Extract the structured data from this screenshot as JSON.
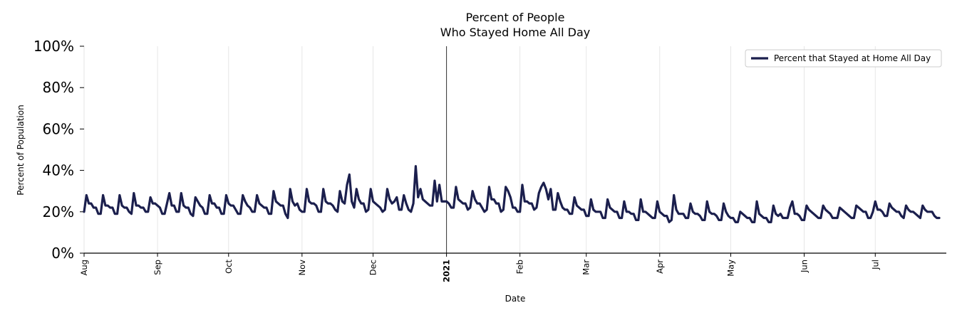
{
  "chart_data": {
    "type": "line",
    "title_lines": [
      "Percent of People",
      "Who Stayed Home All Day"
    ],
    "xlabel": "Date",
    "ylabel": "Percent of Population",
    "ylim": [
      0,
      100
    ],
    "yticks": [
      0,
      20,
      40,
      60,
      80,
      100
    ],
    "ytick_labels": [
      "0%",
      "20%",
      "40%",
      "60%",
      "80%",
      "100%"
    ],
    "x_start": "2020-08-01",
    "x_end": "2021-07-31",
    "xticks": [
      {
        "label": "Aug",
        "day": 0
      },
      {
        "label": "Sep",
        "day": 31
      },
      {
        "label": "Oct",
        "day": 61
      },
      {
        "label": "Nov",
        "day": 92
      },
      {
        "label": "Dec",
        "day": 122
      },
      {
        "label": "2021",
        "day": 153,
        "bold": true
      },
      {
        "label": "Feb",
        "day": 184
      },
      {
        "label": "Mar",
        "day": 212
      },
      {
        "label": "Apr",
        "day": 243
      },
      {
        "label": "May",
        "day": 273
      },
      {
        "label": "Jun",
        "day": 304
      },
      {
        "label": "Jul",
        "day": 334
      }
    ],
    "vline_day": 153,
    "legend": {
      "label": "Percent that Stayed at Home All Day",
      "placement": "top-right"
    },
    "series": [
      {
        "name": "Percent that Stayed at Home All Day",
        "color": "#1b1f4d",
        "start_day": 0,
        "values": [
          20,
          28,
          24,
          24,
          22,
          22,
          19,
          19,
          28,
          23,
          23,
          22,
          22,
          19,
          19,
          28,
          23,
          22,
          22,
          20,
          19,
          29,
          23,
          23,
          22,
          22,
          20,
          20,
          27,
          24,
          24,
          23,
          22,
          19,
          19,
          24,
          29,
          23,
          23,
          20,
          20,
          29,
          23,
          22,
          22,
          19,
          18,
          27,
          25,
          23,
          22,
          19,
          19,
          28,
          24,
          24,
          22,
          22,
          19,
          19,
          28,
          24,
          23,
          23,
          21,
          19,
          19,
          28,
          25,
          23,
          22,
          20,
          20,
          28,
          24,
          23,
          22,
          22,
          19,
          19,
          30,
          25,
          24,
          23,
          23,
          19,
          17,
          31,
          25,
          23,
          24,
          21,
          20,
          20,
          31,
          25,
          24,
          24,
          23,
          20,
          20,
          31,
          25,
          24,
          24,
          23,
          21,
          20,
          30,
          25,
          24,
          33,
          38,
          25,
          22,
          31,
          26,
          24,
          24,
          20,
          21,
          31,
          25,
          24,
          23,
          22,
          20,
          21,
          31,
          26,
          24,
          25,
          27,
          21,
          21,
          28,
          24,
          21,
          20,
          24,
          42,
          27,
          31,
          26,
          25,
          24,
          23,
          23,
          35,
          25,
          33,
          25,
          25,
          25,
          24,
          22,
          22,
          32,
          26,
          25,
          24,
          24,
          21,
          22,
          30,
          26,
          24,
          24,
          22,
          20,
          21,
          32,
          26,
          26,
          24,
          24,
          20,
          21,
          32,
          30,
          27,
          22,
          22,
          20,
          20,
          33,
          25,
          25,
          24,
          24,
          21,
          22,
          29,
          32,
          34,
          31,
          26,
          31,
          21,
          21,
          29,
          25,
          22,
          21,
          21,
          19,
          19,
          27,
          23,
          22,
          21,
          21,
          18,
          18,
          26,
          21,
          20,
          20,
          20,
          17,
          17,
          26,
          22,
          21,
          20,
          20,
          17,
          17,
          25,
          20,
          20,
          19,
          19,
          16,
          16,
          26,
          20,
          20,
          19,
          18,
          17,
          17,
          25,
          20,
          19,
          18,
          18,
          15,
          16,
          28,
          21,
          19,
          19,
          19,
          17,
          17,
          24,
          20,
          19,
          19,
          18,
          16,
          16,
          25,
          20,
          19,
          19,
          18,
          16,
          16,
          24,
          20,
          18,
          17,
          17,
          15,
          15,
          20,
          19,
          18,
          17,
          17,
          15,
          15,
          25,
          19,
          18,
          17,
          17,
          15,
          15,
          23,
          19,
          18,
          19,
          17,
          17,
          17,
          22,
          25,
          19,
          19,
          18,
          16,
          16,
          23,
          21,
          20,
          19,
          18,
          17,
          17,
          23,
          21,
          20,
          19,
          17,
          17,
          17,
          22,
          21,
          20,
          19,
          18,
          17,
          17,
          23,
          22,
          21,
          20,
          20,
          17,
          17,
          20,
          25,
          21,
          21,
          20,
          18,
          18,
          24,
          22,
          21,
          20,
          20,
          18,
          17,
          23,
          21,
          20,
          20,
          19,
          18,
          17,
          23,
          21,
          20,
          20,
          20,
          18,
          17,
          17
        ]
      }
    ]
  }
}
